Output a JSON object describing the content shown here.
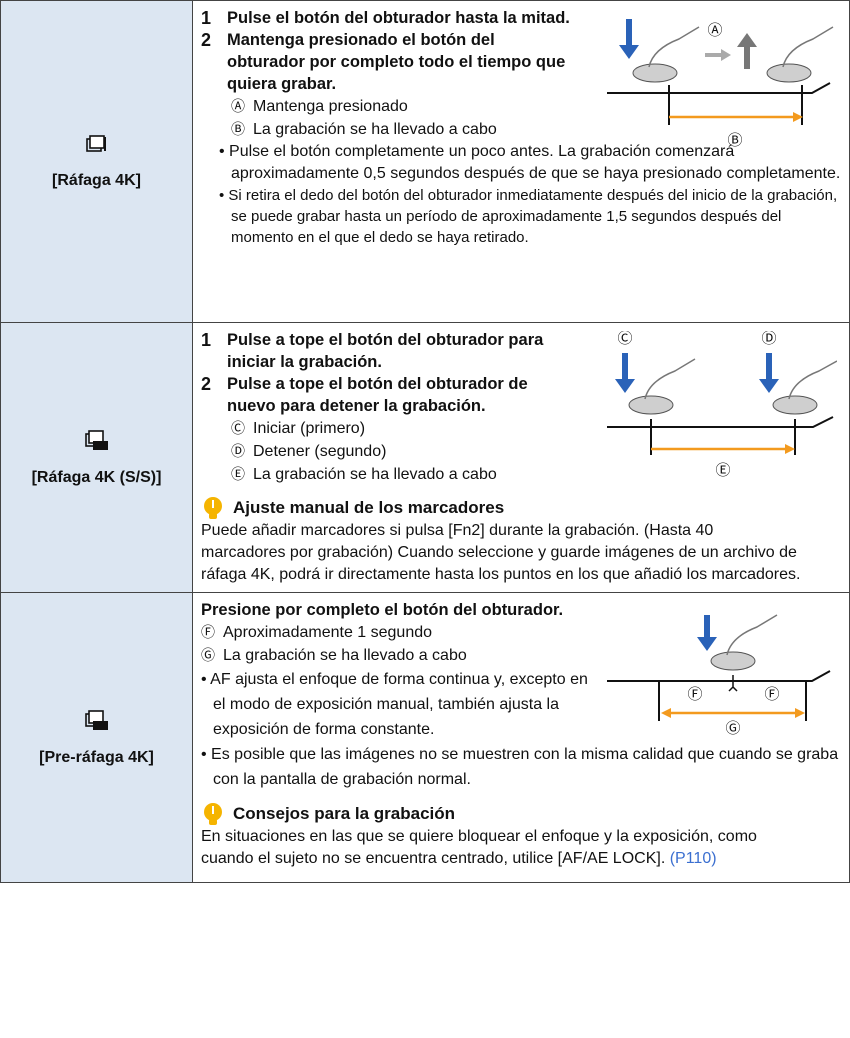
{
  "rows": [
    {
      "mode": "[Ráfaga 4K]",
      "steps": [
        {
          "num": "1",
          "text": "Pulse el botón del obturador hasta la mitad."
        },
        {
          "num": "2",
          "text": "Mantenga presionado el botón del obturador por completo todo el tiempo que quiera grabar."
        }
      ],
      "diagram_labels": [
        "Ⓐ",
        "Ⓑ"
      ],
      "legend": [
        {
          "mark": "Ⓐ",
          "text": "Mantenga presionado"
        },
        {
          "mark": "Ⓑ",
          "text": "La grabación se ha llevado a cabo"
        }
      ],
      "notes": [
        "Pulse el botón completamente un poco antes. La grabación comenzará aproximadamente 0,5 segundos después de que se haya presionado completamente.",
        "Si retira el dedo del botón del obturador inmediatamente después del inicio de la grabación, se puede grabar hasta un período de aproximadamente 1,5 segundos después del momento en el que el dedo se haya retirado."
      ]
    },
    {
      "mode": "[Ráfaga 4K (S/S)]",
      "steps": [
        {
          "num": "1",
          "text": "Pulse a tope el botón del obturador para iniciar la grabación."
        },
        {
          "num": "2",
          "text": "Pulse a tope el botón del obturador de nuevo para detener la grabación."
        }
      ],
      "diagram_labels": [
        "Ⓒ",
        "Ⓓ",
        "Ⓔ"
      ],
      "legend": [
        {
          "mark": "Ⓒ",
          "text": "Iniciar (primero)"
        },
        {
          "mark": "Ⓓ",
          "text": "Detener (segundo)"
        },
        {
          "mark": "Ⓔ",
          "text": "La grabación se ha llevado a cabo"
        }
      ],
      "tip": {
        "title": "Ajuste manual de los marcadores",
        "text": "Puede añadir marcadores si pulsa [Fn2] durante la grabación. (Hasta 40 marcadores por grabación) Cuando seleccione y guarde imágenes de un archivo de ráfaga 4K, podrá ir directamente hasta los puntos en los que añadió los marcadores."
      }
    },
    {
      "mode": "[Pre-ráfaga 4K]",
      "intro": "Presione por completo el botón del obturador.",
      "diagram_labels": [
        "Ⓕ",
        "Ⓕ",
        "Ⓖ"
      ],
      "legend": [
        {
          "mark": "Ⓕ",
          "text": "Aproximadamente 1 segundo"
        },
        {
          "mark": "Ⓖ",
          "text": "La grabación se ha llevado a cabo"
        }
      ],
      "notes": [
        "AF ajusta el enfoque de forma continua y, excepto en el modo de exposición manual, también ajusta la exposición de forma constante.",
        "Es posible que las imágenes no se muestren con la misma calidad que cuando se graba con la pantalla de grabación normal."
      ],
      "tip": {
        "title": "Consejos para la grabación",
        "text": "En situaciones en las que se quiere bloquear el enfoque y la exposición, como cuando el sujeto no se encuentra centrado, utilice [AF/AE LOCK].",
        "link": "(P110)"
      }
    }
  ]
}
